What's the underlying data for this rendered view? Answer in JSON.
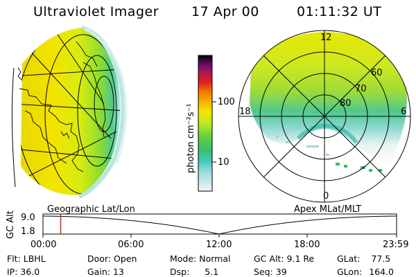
{
  "header": {
    "instrument": "Ultraviolet Imager",
    "date": "17 Apr 00",
    "time": "01:11:32 UT"
  },
  "colorbar": {
    "unit_label": "photon cm⁻²s⁻¹",
    "ticks": [
      "100",
      "10"
    ]
  },
  "polar": {
    "mlt_labels": {
      "top": "12",
      "left": "18",
      "right": "6",
      "bottom": "0"
    },
    "lat_labels": [
      "60",
      "70",
      "80"
    ]
  },
  "timeline": {
    "left_label": "Geographic Lat/Lon",
    "right_label": "Apex MLat/MLT",
    "axis_title": "GC Alt",
    "y_ticks": [
      "9.0",
      "1.8"
    ],
    "x_ticks": [
      "00:00",
      "06:00",
      "12:00",
      "18:00",
      "23:59"
    ],
    "marker_time_fraction": 0.05,
    "marker_color": "#cc2222"
  },
  "info": {
    "row1": [
      {
        "label": "Flt:",
        "value": "LBHL"
      },
      {
        "label": "Door:",
        "value": "Open"
      },
      {
        "label": "Mode:",
        "value": "Normal"
      },
      {
        "label": "GC Alt:",
        "value": "9.1 Re"
      },
      {
        "label": "GLat:",
        "value": "77.5"
      }
    ],
    "row2": [
      {
        "label": "IP:",
        "value": "36.0"
      },
      {
        "label": "Gain:",
        "value": "13"
      },
      {
        "label": "Dsp:",
        "value": "5.1"
      },
      {
        "label": "Seq:",
        "value": "39"
      },
      {
        "label": "GLon:",
        "value": "164.0"
      }
    ]
  }
}
